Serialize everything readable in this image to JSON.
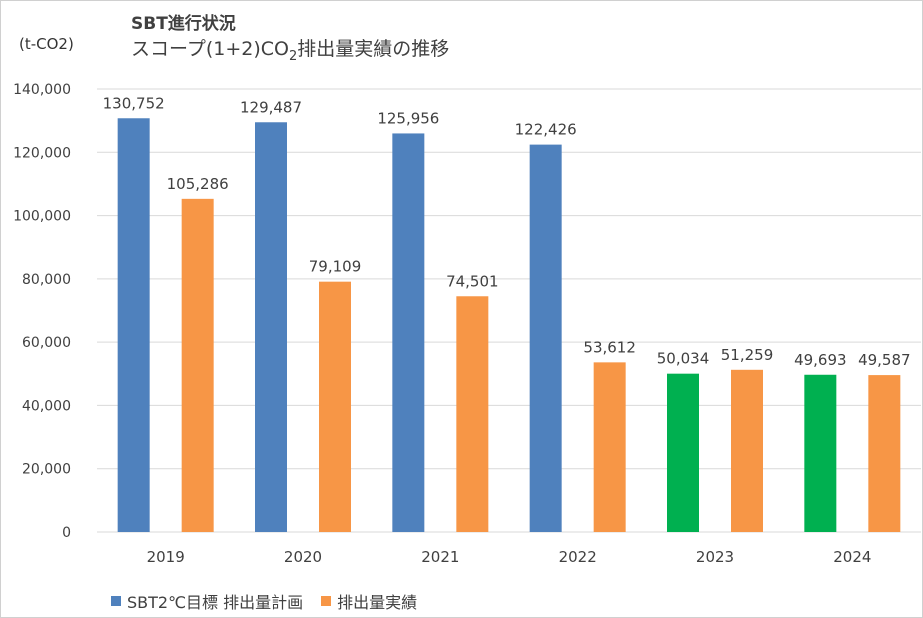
{
  "colors": {
    "plan": "#4f81bd",
    "actual": "#f79646",
    "plan_2023_on": "#00b050",
    "grid": "#d9d9d9",
    "axis_text": "#404040"
  },
  "chart_data": {
    "type": "bar",
    "title": "SBT進行状況",
    "subtitle_parts": [
      "スコープ(1+2)CO",
      "2",
      "排出量実績の推移"
    ],
    "ylabel": "(t-CO2)",
    "xlabel": "",
    "ylim": [
      0,
      140000
    ],
    "yticks": [
      0,
      20000,
      40000,
      60000,
      80000,
      100000,
      120000,
      140000
    ],
    "ytick_labels": [
      "0",
      "20,000",
      "40,000",
      "60,000",
      "80,000",
      "100,000",
      "120,000",
      "140,000"
    ],
    "categories": [
      "2019",
      "2020",
      "2021",
      "2022",
      "2023",
      "2024"
    ],
    "grid": true,
    "legend_position": "bottom-left",
    "series": [
      {
        "name": "SBT2℃目標 排出量計画",
        "values": [
          130752,
          129487,
          125956,
          122426,
          50034,
          49693
        ],
        "labels": [
          "130,752",
          "129,487",
          "125,956",
          "122,426",
          "50,034",
          "49,693"
        ],
        "colors": [
          "#4f81bd",
          "#4f81bd",
          "#4f81bd",
          "#4f81bd",
          "#00b050",
          "#00b050"
        ]
      },
      {
        "name": "排出量実績",
        "values": [
          105286,
          79109,
          74501,
          53612,
          51259,
          49587
        ],
        "labels": [
          "105,286",
          "79,109",
          "74,501",
          "53,612",
          "51,259",
          "49,587"
        ],
        "colors": [
          "#f79646",
          "#f79646",
          "#f79646",
          "#f79646",
          "#f79646",
          "#f79646"
        ]
      }
    ]
  }
}
